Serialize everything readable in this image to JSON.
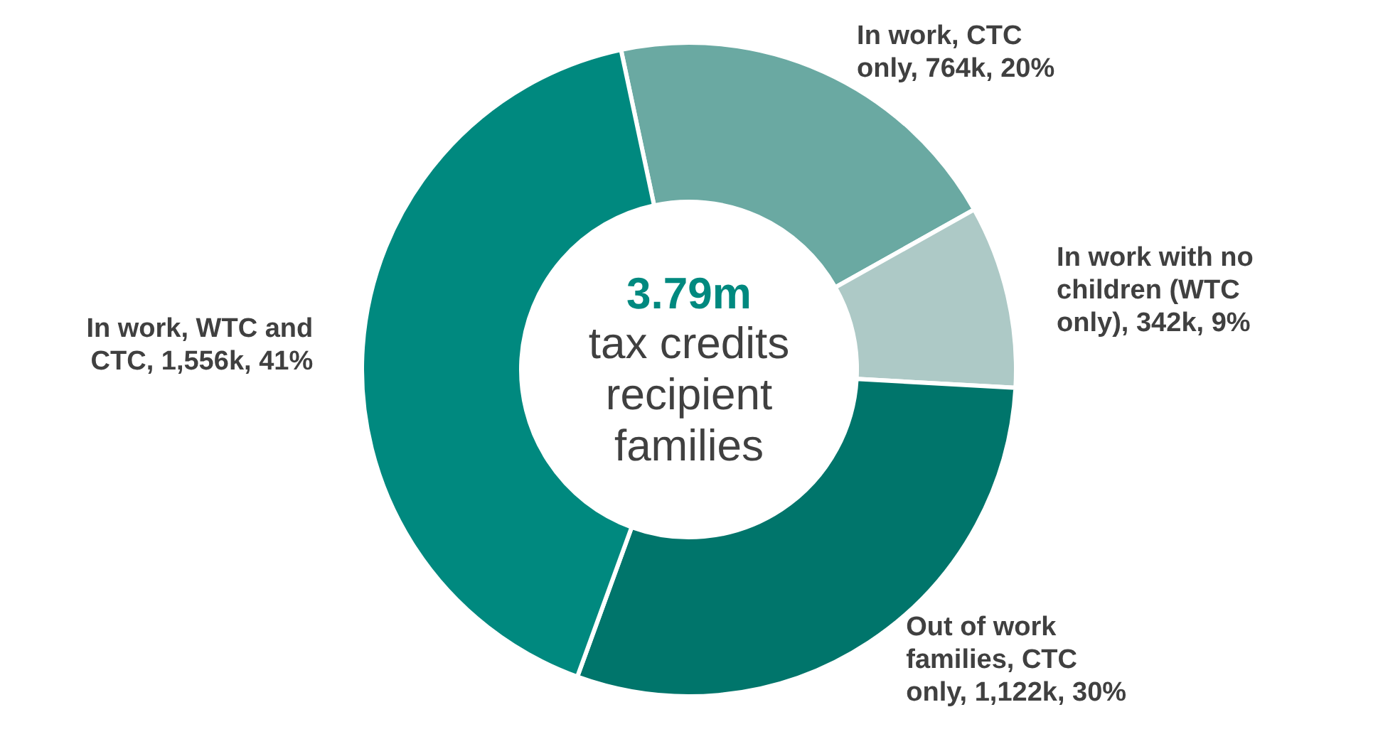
{
  "chart_data": {
    "type": "donut",
    "categories": [
      "In work, CTC only",
      "In work with no children (WTC only)",
      "Out of work families, CTC only",
      "In work, WTC and CTC"
    ],
    "values": [
      764000,
      342000,
      1122000,
      1556000
    ],
    "value_labels": [
      "764k, 20%",
      "342k, 9%",
      "1,122k, 30%",
      "1,556k, 41%"
    ],
    "colors": [
      "#6aa9a2",
      "#adc9c6",
      "#00756b",
      "#00897f"
    ],
    "annotations": [
      "3.79m",
      "tax credits recipient families"
    ]
  }
}
